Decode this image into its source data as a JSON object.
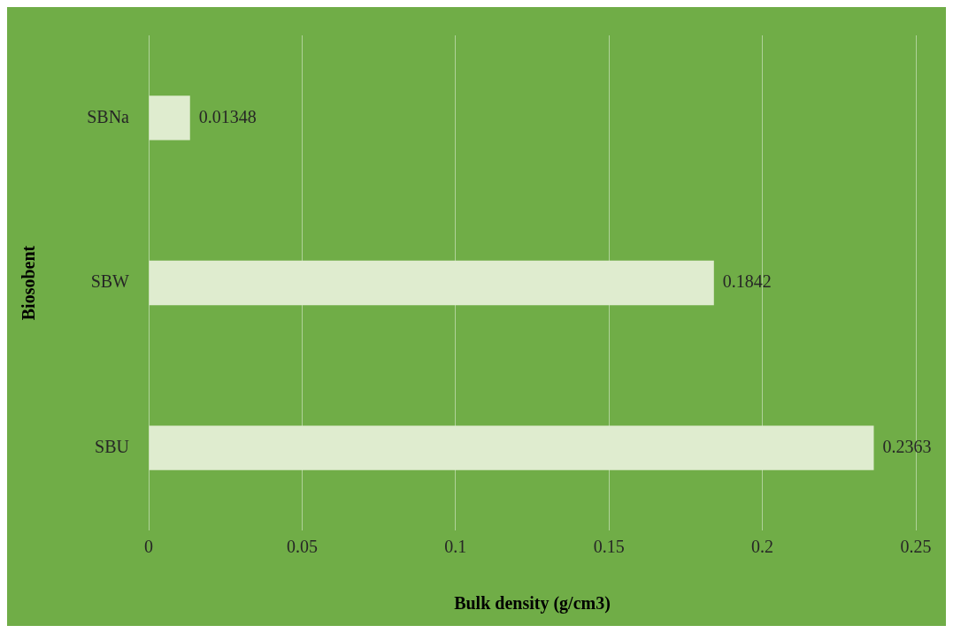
{
  "chart_data": {
    "type": "bar",
    "orientation": "horizontal",
    "xlabel": "Bulk density (g/cm3)",
    "ylabel": "Biosobent",
    "categories": [
      "SBNa",
      "SBW",
      "SBU"
    ],
    "values": [
      0.01348,
      0.1842,
      0.2363
    ],
    "color": "#dfeccf",
    "xlim": [
      0,
      0.25
    ],
    "xticks": [
      0,
      0.05,
      0.1,
      0.15,
      0.2,
      0.25
    ],
    "grid": "x",
    "data_labels": true,
    "legend": false
  }
}
